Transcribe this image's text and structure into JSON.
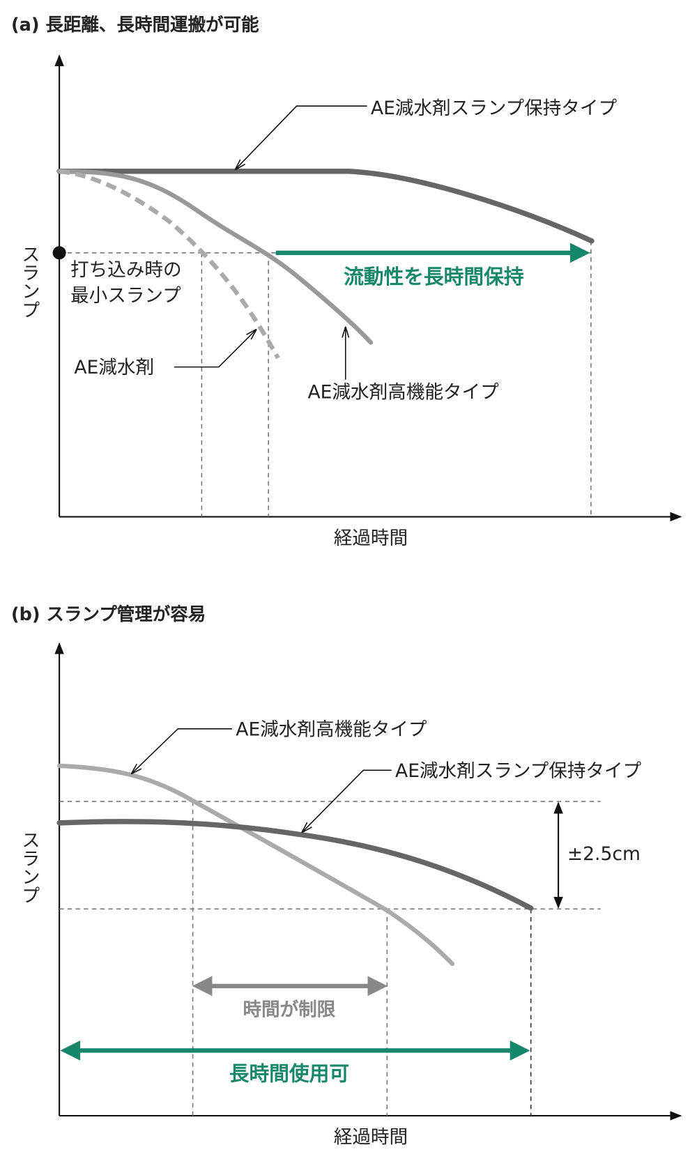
{
  "panel_a": {
    "title": "(a) 長距離、長時間運搬が可能",
    "y_axis_label": "スランプ",
    "x_axis_label": "経過時間",
    "retention_label": "AE減水剤スランプ保持タイプ",
    "min_slump_lines": [
      "打ち込み時の",
      "最小スランプ"
    ],
    "green_label": "流動性を長時間保持",
    "plain_label": "AE減水剤",
    "high_label": "AE減水剤高機能タイプ"
  },
  "panel_b": {
    "title": "(b) スランプ管理が容易",
    "y_axis_label": "スランプ",
    "x_axis_label": "経過時間",
    "high_label": "AE減水剤高機能タイプ",
    "retention_label": "AE減水剤スランプ保持タイプ",
    "range_label": "±2.5cm",
    "gray_label": "時間が制限",
    "green_label": "長時間使用可"
  }
}
